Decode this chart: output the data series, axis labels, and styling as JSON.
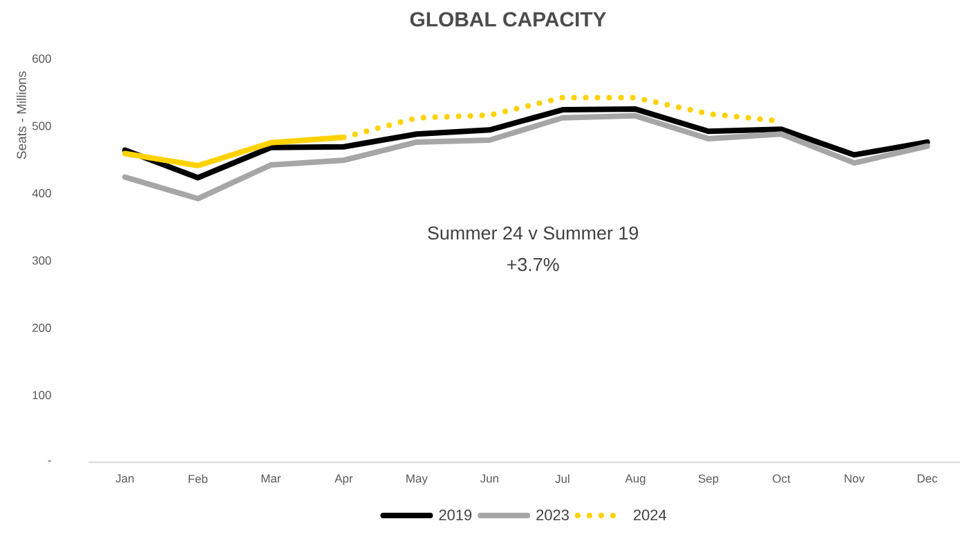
{
  "chart_data": {
    "type": "line",
    "title": "GLOBAL CAPACITY",
    "ylabel": "Seats - Millions",
    "categories": [
      "Jan",
      "Feb",
      "Mar",
      "Apr",
      "May",
      "Jun",
      "Jul",
      "Aug",
      "Sep",
      "Oct",
      "Nov",
      "Dec"
    ],
    "series": [
      {
        "name": "2019",
        "color": "#000000",
        "line_style": "solid",
        "values": [
          464,
          423,
          468,
          469,
          488,
          494,
          524,
          525,
          492,
          495,
          457,
          476
        ]
      },
      {
        "name": "2023",
        "color": "#a6a6a6",
        "line_style": "solid",
        "values": [
          424,
          392,
          442,
          449,
          476,
          479,
          512,
          515,
          481,
          488,
          445,
          470
        ]
      },
      {
        "color": "#ffd200",
        "line_style": "solid",
        "values": [
          459,
          441,
          475,
          483,
          null,
          null,
          null,
          null,
          null,
          null,
          null,
          null
        ]
      },
      {
        "name": "2024",
        "color": "#ffd200",
        "line_style": "dotted",
        "values": [
          null,
          null,
          null,
          483,
          512,
          516,
          542,
          542,
          518,
          507,
          null,
          null
        ]
      }
    ],
    "ylim": [
      0,
      600
    ],
    "yticks": [
      {
        "value": 0,
        "label": "-"
      },
      100,
      200,
      300,
      400,
      500,
      600
    ],
    "annotations": [
      "Summer 24 v Summer 19",
      "+3.7%"
    ],
    "legend": "bottom"
  }
}
